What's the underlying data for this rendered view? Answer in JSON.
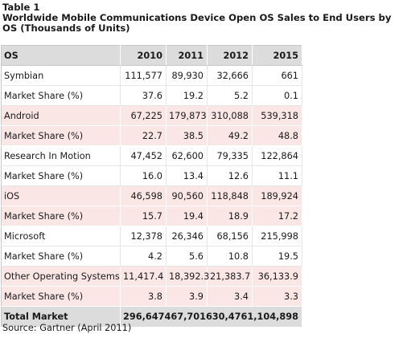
{
  "caption": {
    "label": "Table 1",
    "title": "Worldwide Mobile Communications Device Open OS Sales to End Users by OS (Thousands of Units)"
  },
  "table": {
    "headers": [
      "OS",
      "2010",
      "2011",
      "2012",
      "2015"
    ],
    "rows": [
      {
        "os": "Symbian",
        "v2010": "111,577",
        "v2011": "89,930",
        "v2012": "32,666",
        "v2015": "661"
      },
      {
        "os": "Market Share (%)",
        "v2010": "37.6",
        "v2011": "19.2",
        "v2012": "5.2",
        "v2015": "0.1"
      },
      {
        "os": "Android",
        "v2010": "67,225",
        "v2011": "179,873",
        "v2012": "310,088",
        "v2015": "539,318"
      },
      {
        "os": "Market Share (%)",
        "v2010": "22.7",
        "v2011": "38.5",
        "v2012": "49.2",
        "v2015": "48.8"
      },
      {
        "os": "Research In Motion",
        "v2010": "47,452",
        "v2011": "62,600",
        "v2012": "79,335",
        "v2015": "122,864"
      },
      {
        "os": "Market Share (%)",
        "v2010": "16.0",
        "v2011": "13.4",
        "v2012": "12.6",
        "v2015": "11.1"
      },
      {
        "os": "iOS",
        "v2010": "46,598",
        "v2011": "90,560",
        "v2012": "118,848",
        "v2015": "189,924"
      },
      {
        "os": "Market Share (%)",
        "v2010": "15.7",
        "v2011": "19.4",
        "v2012": "18.9",
        "v2015": "17.2"
      },
      {
        "os": "Microsoft",
        "v2010": "12,378",
        "v2011": "26,346",
        "v2012": "68,156",
        "v2015": "215,998"
      },
      {
        "os": "Market Share (%)",
        "v2010": "4.2",
        "v2011": "5.6",
        "v2012": "10.8",
        "v2015": "19.5"
      },
      {
        "os": "Other Operating Systems",
        "v2010": "11,417.4",
        "v2011": "18,392.3",
        "v2012": "21,383.7",
        "v2015": "36,133.9"
      },
      {
        "os": "Market Share (%)",
        "v2010": "3.8",
        "v2011": "3.9",
        "v2012": "3.4",
        "v2015": "3.3"
      }
    ],
    "total": {
      "label": "Total Market",
      "values_text": "296,647467,701630,4761,104,898"
    }
  },
  "source": "Source: Gartner (April 2011)",
  "colors": {
    "header_bg": "#dcdcdc",
    "band_pink": "#fbe6e6",
    "band_white": "#ffffff"
  }
}
